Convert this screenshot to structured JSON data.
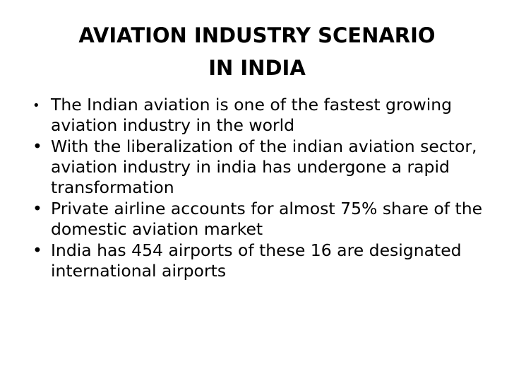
{
  "slide": {
    "title_line1": "AVIATION INDUSTRY SCENARIO",
    "title_line2": "IN INDIA",
    "bullet_symbol": "•",
    "bullets": [
      {
        "text": "The Indian aviation is one of the fastest growing aviation industry in the world"
      },
      {
        "text": "With the liberalization of the indian aviation sector, aviation industry in india has undergone a rapid transformation"
      },
      {
        "text": "Private airline accounts for almost 75% share of the domestic aviation market"
      },
      {
        "text": "India has 454 airports of these 16 are designated international airports"
      }
    ]
  }
}
